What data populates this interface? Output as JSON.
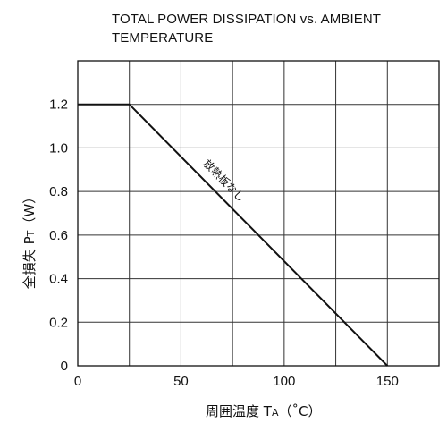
{
  "chart_data": {
    "type": "line",
    "title": "TOTAL POWER DISSIPATION vs. AMBIENT TEMPERATURE",
    "xlabel": "周囲温度  TA（˚C）",
    "ylabel": "全損失  PT（W）",
    "xlim": [
      0,
      175
    ],
    "ylim": [
      0,
      1.4
    ],
    "x_ticks": [
      0,
      50,
      100,
      150
    ],
    "x_tick_labels": [
      "0",
      "50",
      "100",
      "150"
    ],
    "y_ticks": [
      0,
      0.2,
      0.4,
      0.6,
      0.8,
      1.0,
      1.2
    ],
    "y_tick_labels": [
      "0",
      "0.2",
      "0.4",
      "0.6",
      "0.8",
      "1.0",
      "1.2"
    ],
    "grid": true,
    "series": [
      {
        "x": [
          0,
          25,
          150
        ],
        "y": [
          1.2,
          1.2,
          0
        ],
        "annotation": "放熱板なし"
      }
    ]
  }
}
